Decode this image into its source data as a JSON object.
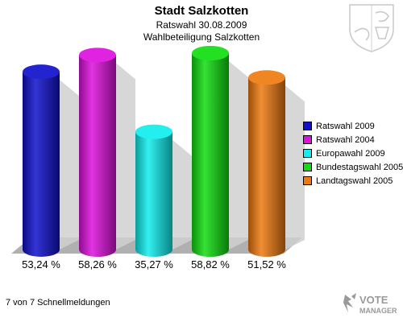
{
  "header": {
    "title": "Stadt Salzkotten",
    "subtitle": "Ratswahl 30.08.2009",
    "subtitle2": "Wahlbeteiligung Salzkotten"
  },
  "footer": {
    "text": "7 von 7 Schnellmeldungen"
  },
  "brand": {
    "line1": "VOTE",
    "line2": "MANAGER"
  },
  "chart_data": {
    "type": "bar",
    "title": "Wahlbeteiligung Salzkotten",
    "xlabel": "",
    "ylabel": "",
    "ylim": [
      0,
      70
    ],
    "grid": false,
    "legend_position": "right",
    "unit": "%",
    "categories": [
      "Ratswahl 2009",
      "Ratswahl 2004",
      "Europawahl 2009",
      "Bundestagswahl 2005",
      "Landtagswahl 2005"
    ],
    "values": [
      53.24,
      58.26,
      35.27,
      58.82,
      51.52
    ],
    "labels": [
      "53,24 %",
      "58,26 %",
      "35,27 %",
      "58,82 %",
      "51,52 %"
    ],
    "colors": [
      "#1010cc",
      "#dd10dd",
      "#10eeee",
      "#10dd10",
      "#ee7a10"
    ]
  }
}
